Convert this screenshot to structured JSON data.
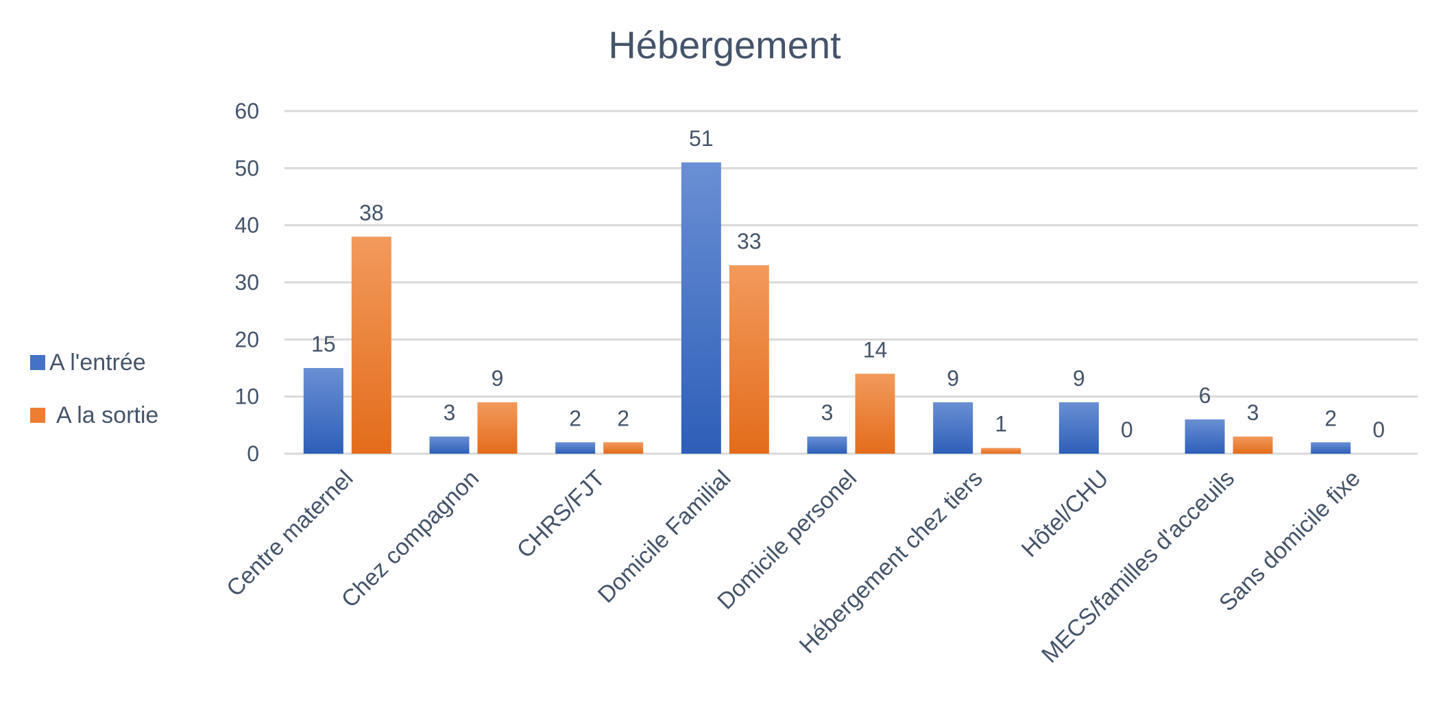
{
  "chart_data": {
    "type": "bar",
    "title": "Hébergement",
    "xlabel": "",
    "ylabel": "",
    "ylim": [
      0,
      60
    ],
    "yticks": [
      0,
      10,
      20,
      30,
      40,
      50,
      60
    ],
    "grid": true,
    "legend_position": "left",
    "categories": [
      "Centre maternel",
      "Chez compagnon",
      "CHRS/FJT",
      "Domicile Familial",
      "Domicile personel",
      "Hébergement chez tiers",
      "Hôtel/CHU",
      "MECS/familles d'acceuils",
      "Sans domicile fixe"
    ],
    "series": [
      {
        "name": "A l'entrée",
        "color": "#4472c4",
        "values": [
          15,
          3,
          2,
          51,
          3,
          9,
          9,
          6,
          2
        ]
      },
      {
        "name": "A la sortie",
        "color": "#ed7d31",
        "values": [
          38,
          9,
          2,
          33,
          14,
          1,
          0,
          3,
          0
        ]
      }
    ]
  }
}
